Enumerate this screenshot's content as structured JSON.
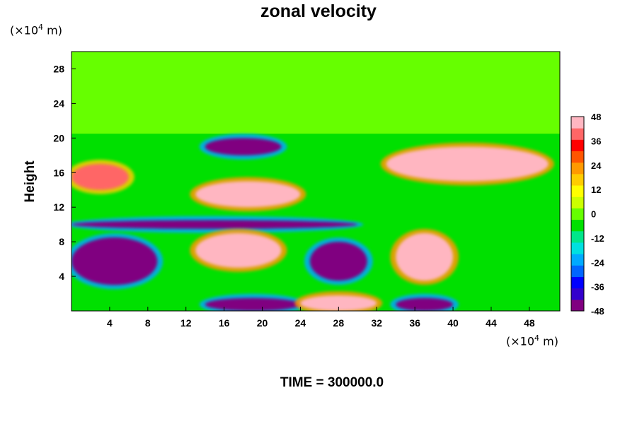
{
  "chart_data": {
    "type": "heatmap",
    "title": "zonal velocity",
    "ylabel": "Height",
    "xlabel": "",
    "y_unit": {
      "prefix": "(×10",
      "exp": "4",
      "suffix": " m)"
    },
    "x_unit": {
      "prefix": "(×10",
      "exp": "4",
      "suffix": " m)"
    },
    "xlim": [
      0,
      51.2
    ],
    "ylim": [
      0,
      30
    ],
    "x_ticks": [
      4,
      8,
      12,
      16,
      20,
      24,
      28,
      32,
      36,
      40,
      44,
      48
    ],
    "y_ticks": [
      4,
      8,
      12,
      16,
      20,
      24,
      28
    ],
    "colorbar": {
      "min": -48,
      "max": 48,
      "ticks": [
        48,
        36,
        24,
        12,
        0,
        -12,
        -24,
        -36,
        -48
      ],
      "colors": [
        "#800080",
        "#3300cc",
        "#0000ff",
        "#0066ff",
        "#00aaff",
        "#00e0e0",
        "#00e68a",
        "#00e000",
        "#66ff00",
        "#ccff00",
        "#ffff00",
        "#ffcc00",
        "#ff9900",
        "#ff5500",
        "#ff0000",
        "#ff6666",
        "#ffb6c1"
      ]
    },
    "regions": [
      {
        "name": "upper layer",
        "y": [
          20.5,
          30
        ],
        "value": 0
      },
      {
        "name": "blob",
        "x": [
          14,
          22
        ],
        "y": [
          18,
          20
        ],
        "value": -48
      },
      {
        "name": "blob",
        "x": [
          33,
          50
        ],
        "y": [
          15,
          19
        ],
        "value": 48
      },
      {
        "name": "blob",
        "x": [
          13,
          24
        ],
        "y": [
          12,
          15
        ],
        "value": 48
      },
      {
        "name": "blob",
        "x": [
          0,
          6
        ],
        "y": [
          14,
          17
        ],
        "value": 42
      },
      {
        "name": "blob",
        "x": [
          0,
          30
        ],
        "y": [
          9.5,
          10.5
        ],
        "value": -48
      },
      {
        "name": "blob",
        "x": [
          0,
          9
        ],
        "y": [
          3,
          8.5
        ],
        "value": -48
      },
      {
        "name": "blob",
        "x": [
          13,
          22
        ],
        "y": [
          5,
          9
        ],
        "value": 48
      },
      {
        "name": "blob",
        "x": [
          25,
          31
        ],
        "y": [
          3.5,
          8
        ],
        "value": -48
      },
      {
        "name": "blob",
        "x": [
          34,
          40
        ],
        "y": [
          3.5,
          9
        ],
        "value": 48
      },
      {
        "name": "blob",
        "x": [
          14,
          24
        ],
        "y": [
          0,
          1.5
        ],
        "value": -48
      },
      {
        "name": "blob",
        "x": [
          34,
          40
        ],
        "y": [
          0,
          1.5
        ],
        "value": -48
      },
      {
        "name": "blob",
        "x": [
          24,
          32
        ],
        "y": [
          0,
          1.8
        ],
        "value": 48
      }
    ]
  },
  "footer": "TIME = 300000.0"
}
